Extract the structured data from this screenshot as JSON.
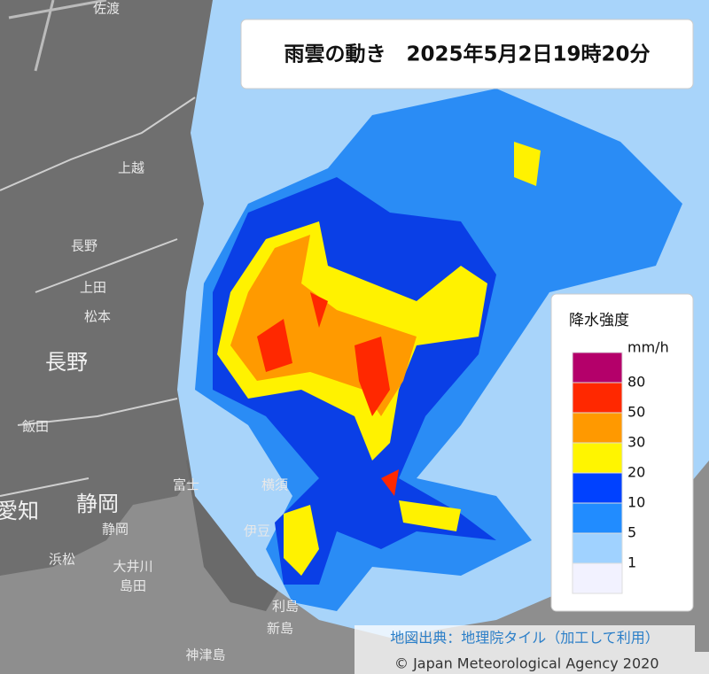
{
  "header": {
    "title": "雨雲の動き　2025年5月2日19時20分"
  },
  "legend": {
    "title": "降水強度",
    "unit": "mm/h",
    "colors": [
      "#b4006a",
      "#ff2800",
      "#ff9900",
      "#fff500",
      "#0041ff",
      "#218cff",
      "#a0d2ff",
      "#f2f2ff"
    ],
    "labels": [
      80,
      50,
      30,
      20,
      10,
      5,
      1
    ]
  },
  "places": [
    "佐渡",
    "上越",
    "長野",
    "松本",
    "上田",
    "長野",
    "飯田",
    "静岡",
    "愛知",
    "静岡",
    "富士",
    "横須",
    "伊豆",
    "浜松",
    "大井川",
    "島田",
    "利島",
    "新島",
    "神津島"
  ],
  "attribution": {
    "source": "地図出典：地理院タイル（加工して利用）",
    "copyright": "© Japan Meteorological Agency 2020"
  }
}
